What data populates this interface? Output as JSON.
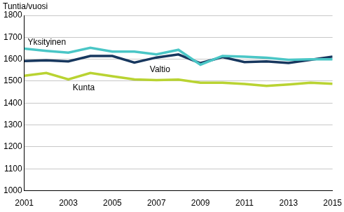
{
  "chart_data": {
    "type": "line",
    "y_label": "Tuntia/vuosi",
    "x": [
      2001,
      2002,
      2003,
      2004,
      2005,
      2006,
      2007,
      2008,
      2009,
      2010,
      2011,
      2012,
      2013,
      2014,
      2015
    ],
    "series": [
      {
        "name": "Yksityinen",
        "color": "#4ac6c6",
        "values": [
          1648,
          1638,
          1630,
          1652,
          1635,
          1635,
          1622,
          1643,
          1575,
          1615,
          1612,
          1607,
          1597,
          1600,
          1600
        ]
      },
      {
        "name": "Valtio",
        "color": "#17375e",
        "values": [
          1592,
          1595,
          1590,
          1615,
          1615,
          1585,
          1608,
          1622,
          1582,
          1610,
          1587,
          1590,
          1583,
          1597,
          1612
        ]
      },
      {
        "name": "Kunta",
        "color": "#b9d332",
        "values": [
          1525,
          1537,
          1508,
          1537,
          1522,
          1508,
          1505,
          1507,
          1493,
          1493,
          1487,
          1478,
          1485,
          1493,
          1488
        ]
      }
    ],
    "xlim": [
      2001,
      2015
    ],
    "xticks": [
      2001,
      2003,
      2005,
      2007,
      2009,
      2011,
      2013,
      2015
    ],
    "ylim": [
      1000,
      1800
    ],
    "yticks": [
      1000,
      1100,
      1200,
      1300,
      1400,
      1500,
      1600,
      1700,
      1800
    ],
    "grid": true
  }
}
